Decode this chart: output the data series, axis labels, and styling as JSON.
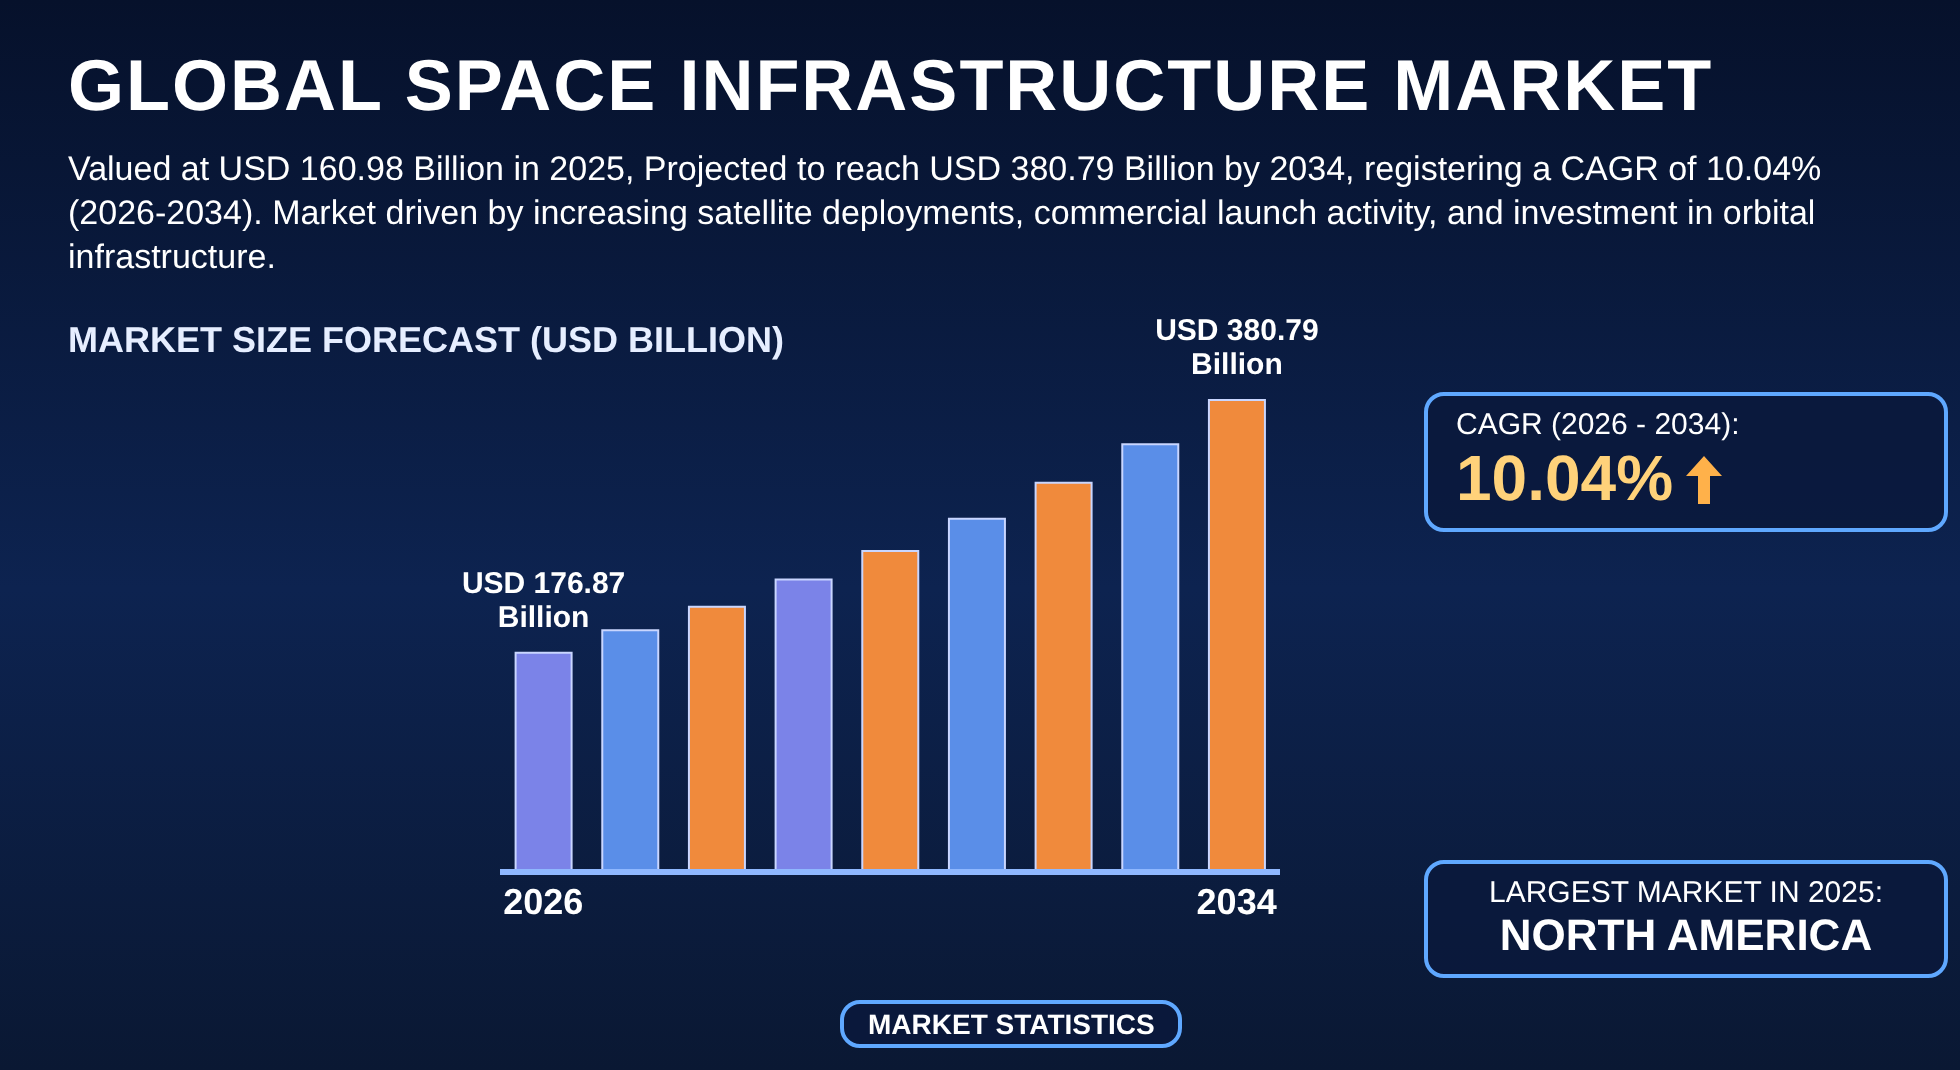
{
  "chart_data": {
    "type": "bar",
    "title": "GLOBAL SPACE INFRASTRUCTURE MARKET",
    "subtitle": "Valued at USD 160.98 Billion in 2025, Projected to reach USD 380.79 Billion by 2034, registering a CAGR of 10.04% (2026-2034). Market driven by increasing satellite deployments, commercial launch activity, and investment in orbital infrastructure.",
    "ylabel": "MARKET SIZE FORECAST (USD BILLION)",
    "categories": [
      "2026",
      null,
      null,
      null,
      null,
      null,
      null,
      null,
      "2034"
    ],
    "values": [
      176.87,
      195,
      214,
      236,
      259,
      285,
      314,
      345,
      380.79
    ],
    "colors": [
      "#7b83e8",
      "#5a8ee8",
      "#f08a3c",
      "#7b83e8",
      "#f08a3c",
      "#5a8ee8",
      "#f08a3c",
      "#5a8ee8",
      "#f08a3c"
    ],
    "value_labels": [
      "USD 176.87 Billion",
      null,
      null,
      null,
      null,
      null,
      null,
      null,
      "USD 380.79 Billion"
    ],
    "grid": false,
    "annotations": [
      "MARKET STATISTICS",
      "CAGR (2026 - 2034):",
      "10.04%",
      "LARGEST MARKET IN 2025:",
      "NORTH AMERICA"
    ]
  }
}
